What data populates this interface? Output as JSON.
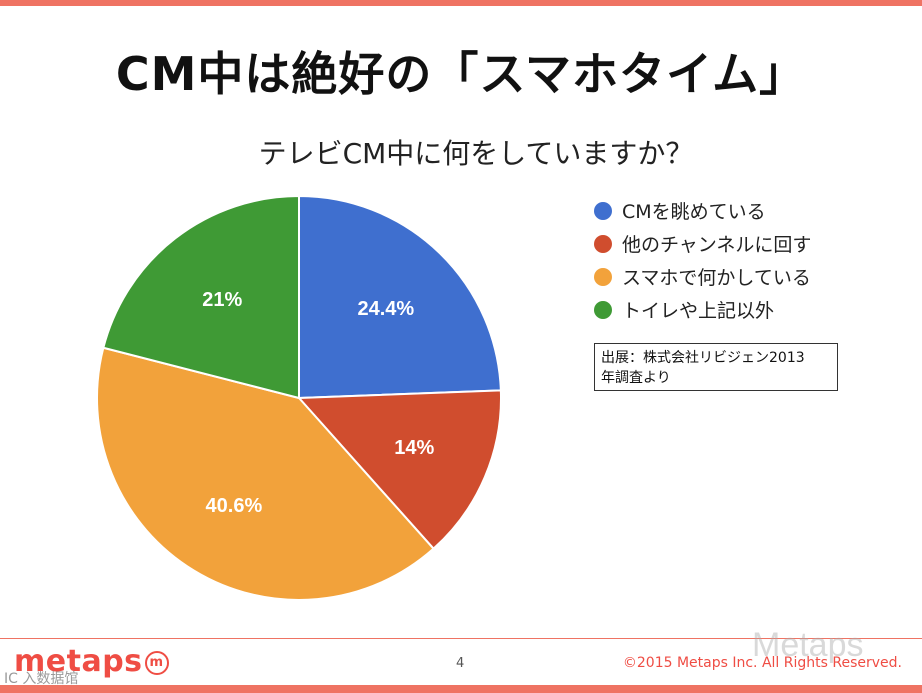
{
  "slide": {
    "title": "CM中は絶好の「スマホタイム」",
    "source_note_line1": "出展：株式会社リビジェン2013",
    "source_note_line2": "年調査より"
  },
  "footer": {
    "logo": "metaps",
    "logo_mark": "m",
    "page_number": "4",
    "copyright": "©2015 Metaps Inc. All Rights Reserved.",
    "watermark_right": "Metaps",
    "watermark_left": "IC 入数据馆"
  },
  "colors": {
    "accent": "#ef7363",
    "blue": "#3f6fcf",
    "red": "#d04d2e",
    "orange": "#f2a23b",
    "green": "#3f9a35"
  },
  "chart_data": {
    "type": "pie",
    "title": "テレビCM中に何をしていますか？",
    "legend_position": "right",
    "slices": [
      {
        "label": "CMを眺めている",
        "value": 24.4,
        "display": "24.4%",
        "color": "#3f6fcf"
      },
      {
        "label": "他のチャンネルに回す",
        "value": 14,
        "display": "14%",
        "color": "#d04d2e"
      },
      {
        "label": "スマホで何かしている",
        "value": 40.6,
        "display": "40.6%",
        "color": "#f2a23b"
      },
      {
        "label": "トイレや上記以外",
        "value": 21,
        "display": "21%",
        "color": "#3f9a35"
      }
    ]
  }
}
